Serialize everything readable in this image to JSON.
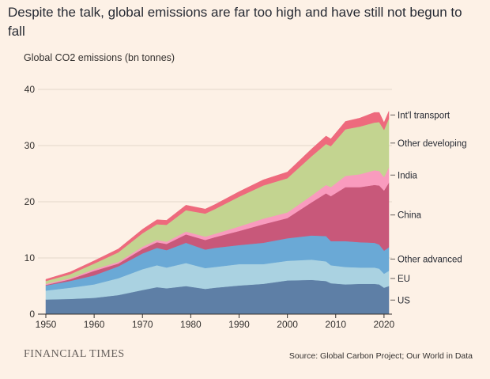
{
  "chart_data": {
    "type": "area",
    "stacked": true,
    "title": "Despite the talk, global emissions are far too high and have still not begun to fall",
    "ylabel": "Global CO2 emissions (bn tonnes)",
    "xlim": [
      1950,
      2021
    ],
    "ylim": [
      0,
      40
    ],
    "xticks": [
      1950,
      1960,
      1970,
      1980,
      1990,
      2000,
      2010,
      2020
    ],
    "yticks": [
      0,
      10,
      20,
      30,
      40
    ],
    "grid": true,
    "x": [
      1950,
      1955,
      1960,
      1965,
      1970,
      1973,
      1975,
      1979,
      1983,
      1985,
      1990,
      1995,
      2000,
      2005,
      2008,
      2009,
      2012,
      2015,
      2018,
      2019,
      2020,
      2021
    ],
    "series": [
      {
        "name": "US",
        "color": "#5e7fa6",
        "values": [
          2.6,
          2.7,
          2.9,
          3.4,
          4.3,
          4.8,
          4.6,
          5.0,
          4.5,
          4.7,
          5.1,
          5.4,
          6.0,
          6.1,
          5.9,
          5.5,
          5.3,
          5.4,
          5.4,
          5.3,
          4.7,
          5.0
        ]
      },
      {
        "name": "EU",
        "color": "#aad2e1",
        "values": [
          1.6,
          2.0,
          2.4,
          3.0,
          3.7,
          3.9,
          3.7,
          4.1,
          3.7,
          3.7,
          3.8,
          3.5,
          3.5,
          3.6,
          3.5,
          3.2,
          3.1,
          2.9,
          2.9,
          2.8,
          2.5,
          2.7
        ]
      },
      {
        "name": "Other advanced",
        "color": "#6aa9d6",
        "values": [
          0.9,
          1.2,
          1.6,
          2.1,
          2.8,
          3.1,
          3.1,
          3.6,
          3.3,
          3.4,
          3.4,
          3.8,
          4.0,
          4.3,
          4.5,
          4.3,
          4.6,
          4.5,
          4.4,
          4.3,
          4.1,
          4.2
        ]
      },
      {
        "name": "China",
        "color": "#c8587a",
        "values": [
          0.1,
          0.3,
          0.8,
          0.5,
          0.8,
          1.0,
          1.1,
          1.5,
          1.7,
          1.9,
          2.5,
          3.3,
          3.6,
          5.9,
          7.6,
          8.0,
          9.6,
          9.8,
          10.3,
          10.5,
          10.7,
          11.5
        ]
      },
      {
        "name": "India",
        "color": "#f99bbe",
        "values": [
          0.2,
          0.2,
          0.3,
          0.3,
          0.4,
          0.4,
          0.4,
          0.5,
          0.6,
          0.6,
          0.8,
          1.0,
          1.0,
          1.2,
          1.5,
          1.6,
          2.0,
          2.3,
          2.6,
          2.6,
          2.4,
          2.7
        ]
      },
      {
        "name": "Other developing",
        "color": "#c3d490",
        "values": [
          0.5,
          0.7,
          1.0,
          1.7,
          2.4,
          2.8,
          3.0,
          3.8,
          4.1,
          4.4,
          5.3,
          5.9,
          6.1,
          7.0,
          7.3,
          7.3,
          8.3,
          8.5,
          8.5,
          8.7,
          8.4,
          8.7
        ]
      },
      {
        "name": "Int'l transport",
        "color": "#ee6a7d",
        "values": [
          0.3,
          0.4,
          0.5,
          0.6,
          0.7,
          0.8,
          0.8,
          0.9,
          0.8,
          0.8,
          0.9,
          1.0,
          1.1,
          1.3,
          1.4,
          1.3,
          1.4,
          1.5,
          1.8,
          1.7,
          1.3,
          1.3
        ]
      }
    ]
  },
  "footer": {
    "brand": "FINANCIAL TIMES",
    "source": "Source: Global Carbon Project; Our World in Data"
  }
}
